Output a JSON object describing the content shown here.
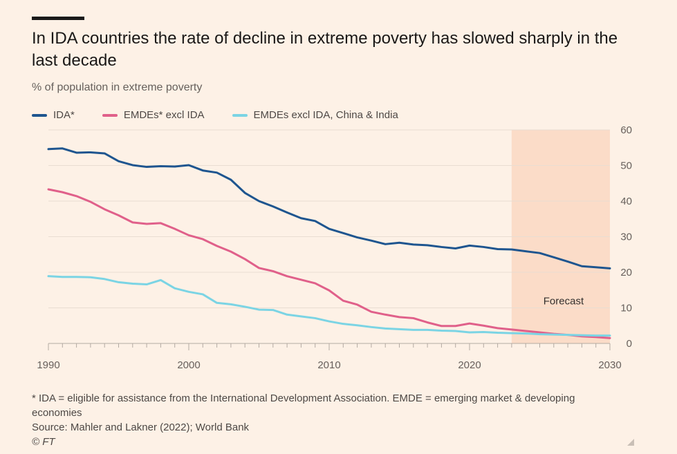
{
  "header": {
    "title": "In IDA countries the rate of decline in extreme poverty has slowed sharply in the last decade",
    "subtitle": "% of population in extreme poverty"
  },
  "footer": {
    "note": "* IDA = eligible for assistance from the International Development Association. EMDE = emerging market & developing economies",
    "source": "Source: Mahler and Lakner (2022); World Bank",
    "copyright": "© FT"
  },
  "chart_data": {
    "type": "line",
    "title": "In IDA countries the rate of decline in extreme poverty has slowed sharply in the last decade",
    "ylabel": "% of population in extreme poverty",
    "xlim": [
      1990,
      2030
    ],
    "ylim": [
      0,
      60
    ],
    "x_ticks": [
      1990,
      2000,
      2010,
      2020,
      2030
    ],
    "y_ticks": [
      0,
      10,
      20,
      30,
      40,
      50,
      60
    ],
    "grid": true,
    "legend_position": "top-left",
    "annotation": {
      "label": "Forecast",
      "x_start": 2023,
      "x_end": 2030,
      "color": "#fbdcc8"
    },
    "x": [
      1990,
      1991,
      1992,
      1993,
      1994,
      1995,
      1996,
      1997,
      1998,
      1999,
      2000,
      2001,
      2002,
      2003,
      2004,
      2005,
      2006,
      2007,
      2008,
      2009,
      2010,
      2011,
      2012,
      2013,
      2014,
      2015,
      2016,
      2017,
      2018,
      2019,
      2020,
      2021,
      2022,
      2023,
      2024,
      2025,
      2026,
      2027,
      2028,
      2029,
      2030
    ],
    "series": [
      {
        "name": "IDA*",
        "color": "#1e558f",
        "values": [
          54.6,
          54.8,
          53.6,
          53.7,
          53.4,
          51.2,
          50.1,
          49.6,
          49.8,
          49.7,
          50.1,
          48.6,
          48.0,
          46.0,
          42.3,
          40.0,
          38.5,
          36.8,
          35.2,
          34.4,
          32.2,
          31.0,
          29.8,
          28.9,
          27.9,
          28.3,
          27.8,
          27.6,
          27.1,
          26.7,
          27.5,
          27.1,
          26.5,
          26.4,
          25.9,
          25.4,
          24.2,
          23.0,
          21.7,
          21.4,
          21.1
        ]
      },
      {
        "name": "EMDEs* excl IDA",
        "color": "#e0608a",
        "values": [
          43.3,
          42.5,
          41.4,
          39.8,
          37.7,
          36.0,
          34.0,
          33.6,
          33.8,
          32.2,
          30.4,
          29.3,
          27.4,
          25.8,
          23.7,
          21.2,
          20.3,
          18.9,
          17.9,
          16.9,
          14.9,
          12.0,
          10.9,
          8.9,
          8.1,
          7.4,
          7.1,
          5.9,
          4.9,
          4.9,
          5.6,
          5.0,
          4.3,
          3.9,
          3.5,
          3.1,
          2.7,
          2.4,
          2.0,
          1.8,
          1.5
        ]
      },
      {
        "name": "EMDEs excl IDA, China & India",
        "color": "#7bd4e4",
        "values": [
          18.9,
          18.7,
          18.7,
          18.6,
          18.1,
          17.2,
          16.8,
          16.6,
          17.8,
          15.5,
          14.5,
          13.8,
          11.4,
          11.0,
          10.3,
          9.5,
          9.4,
          8.1,
          7.6,
          7.1,
          6.2,
          5.5,
          5.1,
          4.6,
          4.2,
          4.0,
          3.8,
          3.8,
          3.6,
          3.5,
          3.1,
          3.2,
          3.0,
          2.9,
          2.8,
          2.6,
          2.5,
          2.4,
          2.3,
          2.2,
          2.2
        ]
      }
    ]
  }
}
